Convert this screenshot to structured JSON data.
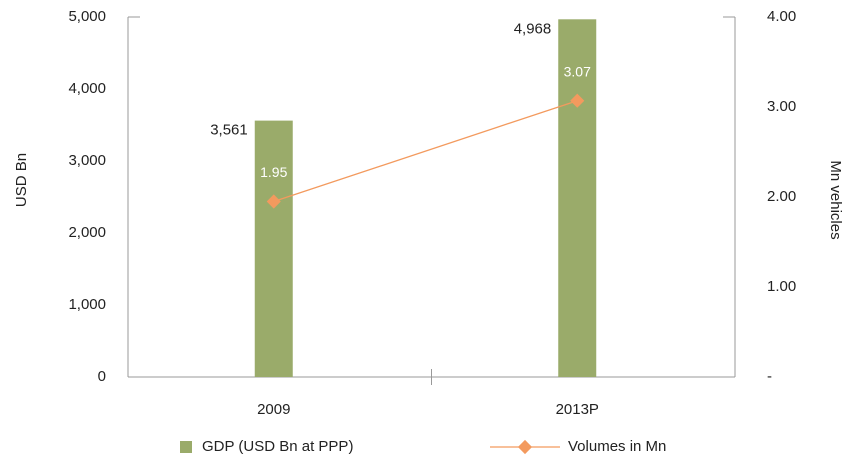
{
  "chart_data": {
    "type": "bar_line",
    "categories": [
      "2009",
      "2013P"
    ],
    "series": [
      {
        "name": "GDP (USD Bn at PPP)",
        "type": "bar",
        "color": "#9aab6a",
        "values": [
          3561,
          4968
        ],
        "value_labels": [
          "3,561",
          "4,968"
        ]
      },
      {
        "name": "Volumes in Mn",
        "type": "line",
        "axis": "y2",
        "color": "#f39a5e",
        "values": [
          1.95,
          3.07
        ]
      }
    ],
    "ylabel": "USD Bn",
    "y2label": "Mn vehicles",
    "ylim": [
      0,
      5000
    ],
    "yticks": [
      0,
      {
        "value": 1000,
        "label": "1,000"
      },
      {
        "value": 2000,
        "label": "2,000"
      },
      {
        "value": 3000,
        "label": "3,000"
      },
      {
        "value": 4000,
        "label": "4,000"
      },
      {
        "value": 5000,
        "label": "5,000"
      }
    ],
    "y2lim": [
      0,
      4
    ],
    "y2ticks": [
      {
        "value": 0,
        "label": "-"
      },
      {
        "value": 1,
        "label": "1.00"
      },
      {
        "value": 2,
        "label": "2.00"
      },
      {
        "value": 3,
        "label": "3.00"
      },
      {
        "value": 4,
        "label": "4.00"
      }
    ],
    "grid": false,
    "legend": "bottom"
  }
}
